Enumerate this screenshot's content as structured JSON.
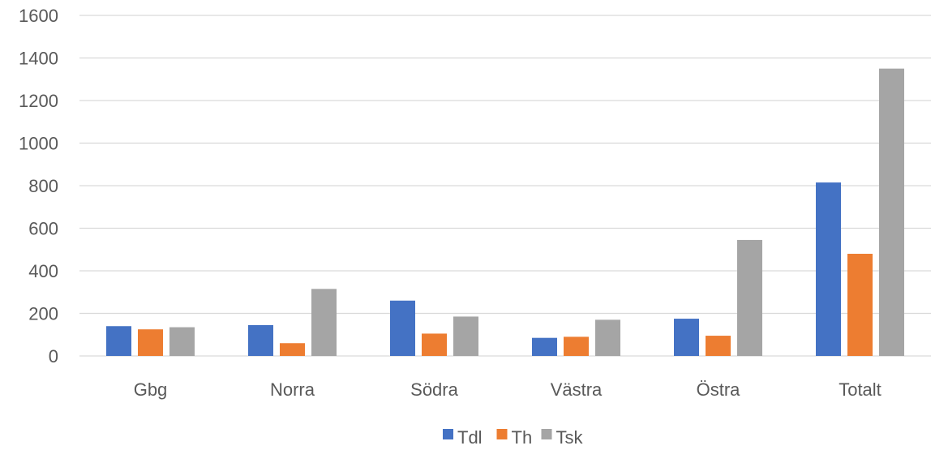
{
  "chart_data": {
    "type": "bar",
    "title": "",
    "xlabel": "",
    "ylabel": "",
    "categories": [
      "Gbg",
      "Norra",
      "Södra",
      "Västra",
      "Östra",
      "Totalt"
    ],
    "series": [
      {
        "name": "Tdl",
        "color": "#4472c4",
        "values": [
          140,
          145,
          260,
          85,
          175,
          815
        ]
      },
      {
        "name": "Th",
        "color": "#ed7d31",
        "values": [
          125,
          60,
          105,
          90,
          95,
          480
        ]
      },
      {
        "name": "Tsk",
        "color": "#a5a5a5",
        "values": [
          135,
          315,
          185,
          170,
          545,
          1350
        ]
      }
    ],
    "ylim": [
      0,
      1600
    ],
    "yticks": [
      0,
      200,
      400,
      600,
      800,
      1000,
      1200,
      1400,
      1600
    ],
    "grid": true,
    "legend_position": "bottom-center"
  }
}
